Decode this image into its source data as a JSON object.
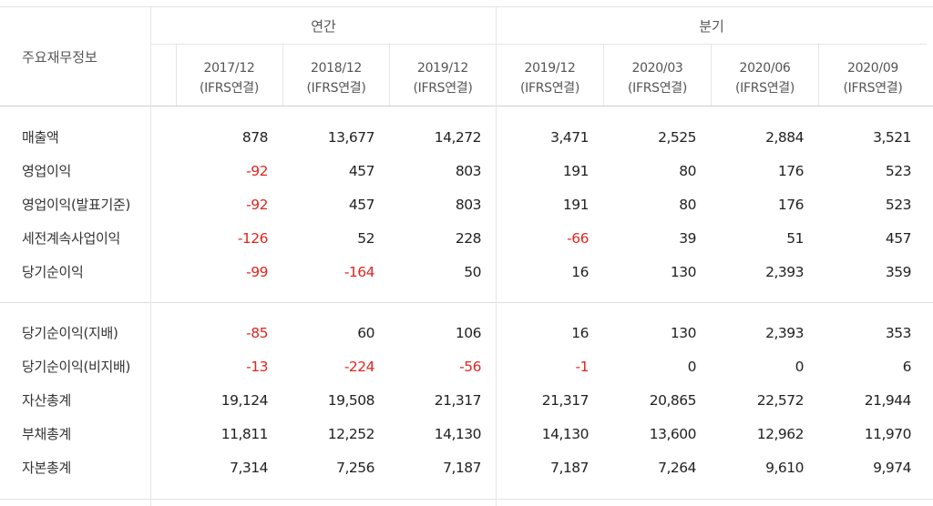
{
  "table": {
    "title": "주요재무정보",
    "groups": [
      {
        "label": "연간"
      },
      {
        "label": "분기"
      }
    ],
    "periods": [
      {
        "date": "2017/12",
        "basis": "(IFRS연결)"
      },
      {
        "date": "2018/12",
        "basis": "(IFRS연결)"
      },
      {
        "date": "2019/12",
        "basis": "(IFRS연결)"
      },
      {
        "date": "2019/12",
        "basis": "(IFRS연결)"
      },
      {
        "date": "2020/03",
        "basis": "(IFRS연결)"
      },
      {
        "date": "2020/06",
        "basis": "(IFRS연결)"
      },
      {
        "date": "2020/09",
        "basis": "(IFRS연결)"
      }
    ],
    "rows": [
      {
        "label": "매출액",
        "values": [
          "878",
          "13,677",
          "14,272",
          "3,471",
          "2,525",
          "2,884",
          "3,521"
        ]
      },
      {
        "label": "영업이익",
        "values": [
          "-92",
          "457",
          "803",
          "191",
          "80",
          "176",
          "523"
        ]
      },
      {
        "label": "영업이익(발표기준)",
        "values": [
          "-92",
          "457",
          "803",
          "191",
          "80",
          "176",
          "523"
        ]
      },
      {
        "label": "세전계속사업이익",
        "values": [
          "-126",
          "52",
          "228",
          "-66",
          "39",
          "51",
          "457"
        ]
      },
      {
        "label": "당기순이익",
        "values": [
          "-99",
          "-164",
          "50",
          "16",
          "130",
          "2,393",
          "359"
        ]
      },
      {
        "label": "당기순이익(지배)",
        "values": [
          "-85",
          "60",
          "106",
          "16",
          "130",
          "2,393",
          "353"
        ]
      },
      {
        "label": "당기순이익(비지배)",
        "values": [
          "-13",
          "-224",
          "-56",
          "-1",
          "0",
          "0",
          "6"
        ]
      },
      {
        "label": "자산총계",
        "values": [
          "19,124",
          "19,508",
          "21,317",
          "21,317",
          "20,865",
          "22,572",
          "21,944"
        ]
      },
      {
        "label": "부채총계",
        "values": [
          "11,811",
          "12,252",
          "14,130",
          "14,130",
          "13,600",
          "12,962",
          "11,970"
        ]
      },
      {
        "label": "자본총계",
        "values": [
          "7,314",
          "7,256",
          "7,187",
          "7,187",
          "7,264",
          "9,610",
          "9,974"
        ]
      }
    ],
    "colors": {
      "negative": "#e0261f",
      "text": "#222222",
      "header_text": "#555555",
      "rule": "#d9d9d9"
    }
  }
}
